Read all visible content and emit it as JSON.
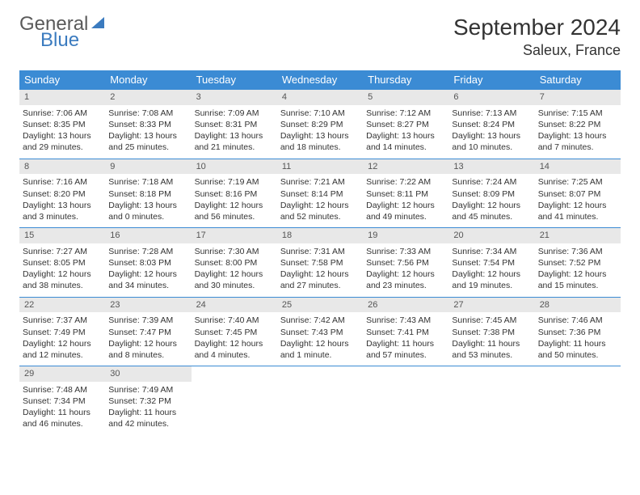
{
  "brand": {
    "part1": "General",
    "part2": "Blue"
  },
  "title": "September 2024",
  "location": "Saleux, France",
  "colors": {
    "header_bg": "#3b8bd4",
    "header_text": "#ffffff",
    "daynum_bg": "#e8e8e8",
    "row_border": "#3b8bd4",
    "brand_blue": "#3b7bbf",
    "brand_gray": "#5a5a5a",
    "page_bg": "#ffffff",
    "text": "#333333"
  },
  "typography": {
    "title_fontsize": 28,
    "location_fontsize": 18,
    "header_fontsize": 13,
    "cell_fontsize": 10.5
  },
  "day_headers": [
    "Sunday",
    "Monday",
    "Tuesday",
    "Wednesday",
    "Thursday",
    "Friday",
    "Saturday"
  ],
  "weeks": [
    [
      {
        "n": "1",
        "sr": "7:06 AM",
        "ss": "8:35 PM",
        "dl": "13 hours and 29 minutes."
      },
      {
        "n": "2",
        "sr": "7:08 AM",
        "ss": "8:33 PM",
        "dl": "13 hours and 25 minutes."
      },
      {
        "n": "3",
        "sr": "7:09 AM",
        "ss": "8:31 PM",
        "dl": "13 hours and 21 minutes."
      },
      {
        "n": "4",
        "sr": "7:10 AM",
        "ss": "8:29 PM",
        "dl": "13 hours and 18 minutes."
      },
      {
        "n": "5",
        "sr": "7:12 AM",
        "ss": "8:27 PM",
        "dl": "13 hours and 14 minutes."
      },
      {
        "n": "6",
        "sr": "7:13 AM",
        "ss": "8:24 PM",
        "dl": "13 hours and 10 minutes."
      },
      {
        "n": "7",
        "sr": "7:15 AM",
        "ss": "8:22 PM",
        "dl": "13 hours and 7 minutes."
      }
    ],
    [
      {
        "n": "8",
        "sr": "7:16 AM",
        "ss": "8:20 PM",
        "dl": "13 hours and 3 minutes."
      },
      {
        "n": "9",
        "sr": "7:18 AM",
        "ss": "8:18 PM",
        "dl": "13 hours and 0 minutes."
      },
      {
        "n": "10",
        "sr": "7:19 AM",
        "ss": "8:16 PM",
        "dl": "12 hours and 56 minutes."
      },
      {
        "n": "11",
        "sr": "7:21 AM",
        "ss": "8:14 PM",
        "dl": "12 hours and 52 minutes."
      },
      {
        "n": "12",
        "sr": "7:22 AM",
        "ss": "8:11 PM",
        "dl": "12 hours and 49 minutes."
      },
      {
        "n": "13",
        "sr": "7:24 AM",
        "ss": "8:09 PM",
        "dl": "12 hours and 45 minutes."
      },
      {
        "n": "14",
        "sr": "7:25 AM",
        "ss": "8:07 PM",
        "dl": "12 hours and 41 minutes."
      }
    ],
    [
      {
        "n": "15",
        "sr": "7:27 AM",
        "ss": "8:05 PM",
        "dl": "12 hours and 38 minutes."
      },
      {
        "n": "16",
        "sr": "7:28 AM",
        "ss": "8:03 PM",
        "dl": "12 hours and 34 minutes."
      },
      {
        "n": "17",
        "sr": "7:30 AM",
        "ss": "8:00 PM",
        "dl": "12 hours and 30 minutes."
      },
      {
        "n": "18",
        "sr": "7:31 AM",
        "ss": "7:58 PM",
        "dl": "12 hours and 27 minutes."
      },
      {
        "n": "19",
        "sr": "7:33 AM",
        "ss": "7:56 PM",
        "dl": "12 hours and 23 minutes."
      },
      {
        "n": "20",
        "sr": "7:34 AM",
        "ss": "7:54 PM",
        "dl": "12 hours and 19 minutes."
      },
      {
        "n": "21",
        "sr": "7:36 AM",
        "ss": "7:52 PM",
        "dl": "12 hours and 15 minutes."
      }
    ],
    [
      {
        "n": "22",
        "sr": "7:37 AM",
        "ss": "7:49 PM",
        "dl": "12 hours and 12 minutes."
      },
      {
        "n": "23",
        "sr": "7:39 AM",
        "ss": "7:47 PM",
        "dl": "12 hours and 8 minutes."
      },
      {
        "n": "24",
        "sr": "7:40 AM",
        "ss": "7:45 PM",
        "dl": "12 hours and 4 minutes."
      },
      {
        "n": "25",
        "sr": "7:42 AM",
        "ss": "7:43 PM",
        "dl": "12 hours and 1 minute."
      },
      {
        "n": "26",
        "sr": "7:43 AM",
        "ss": "7:41 PM",
        "dl": "11 hours and 57 minutes."
      },
      {
        "n": "27",
        "sr": "7:45 AM",
        "ss": "7:38 PM",
        "dl": "11 hours and 53 minutes."
      },
      {
        "n": "28",
        "sr": "7:46 AM",
        "ss": "7:36 PM",
        "dl": "11 hours and 50 minutes."
      }
    ],
    [
      {
        "n": "29",
        "sr": "7:48 AM",
        "ss": "7:34 PM",
        "dl": "11 hours and 46 minutes."
      },
      {
        "n": "30",
        "sr": "7:49 AM",
        "ss": "7:32 PM",
        "dl": "11 hours and 42 minutes."
      },
      null,
      null,
      null,
      null,
      null
    ]
  ],
  "labels": {
    "sunrise": "Sunrise:",
    "sunset": "Sunset:",
    "daylight": "Daylight:"
  }
}
